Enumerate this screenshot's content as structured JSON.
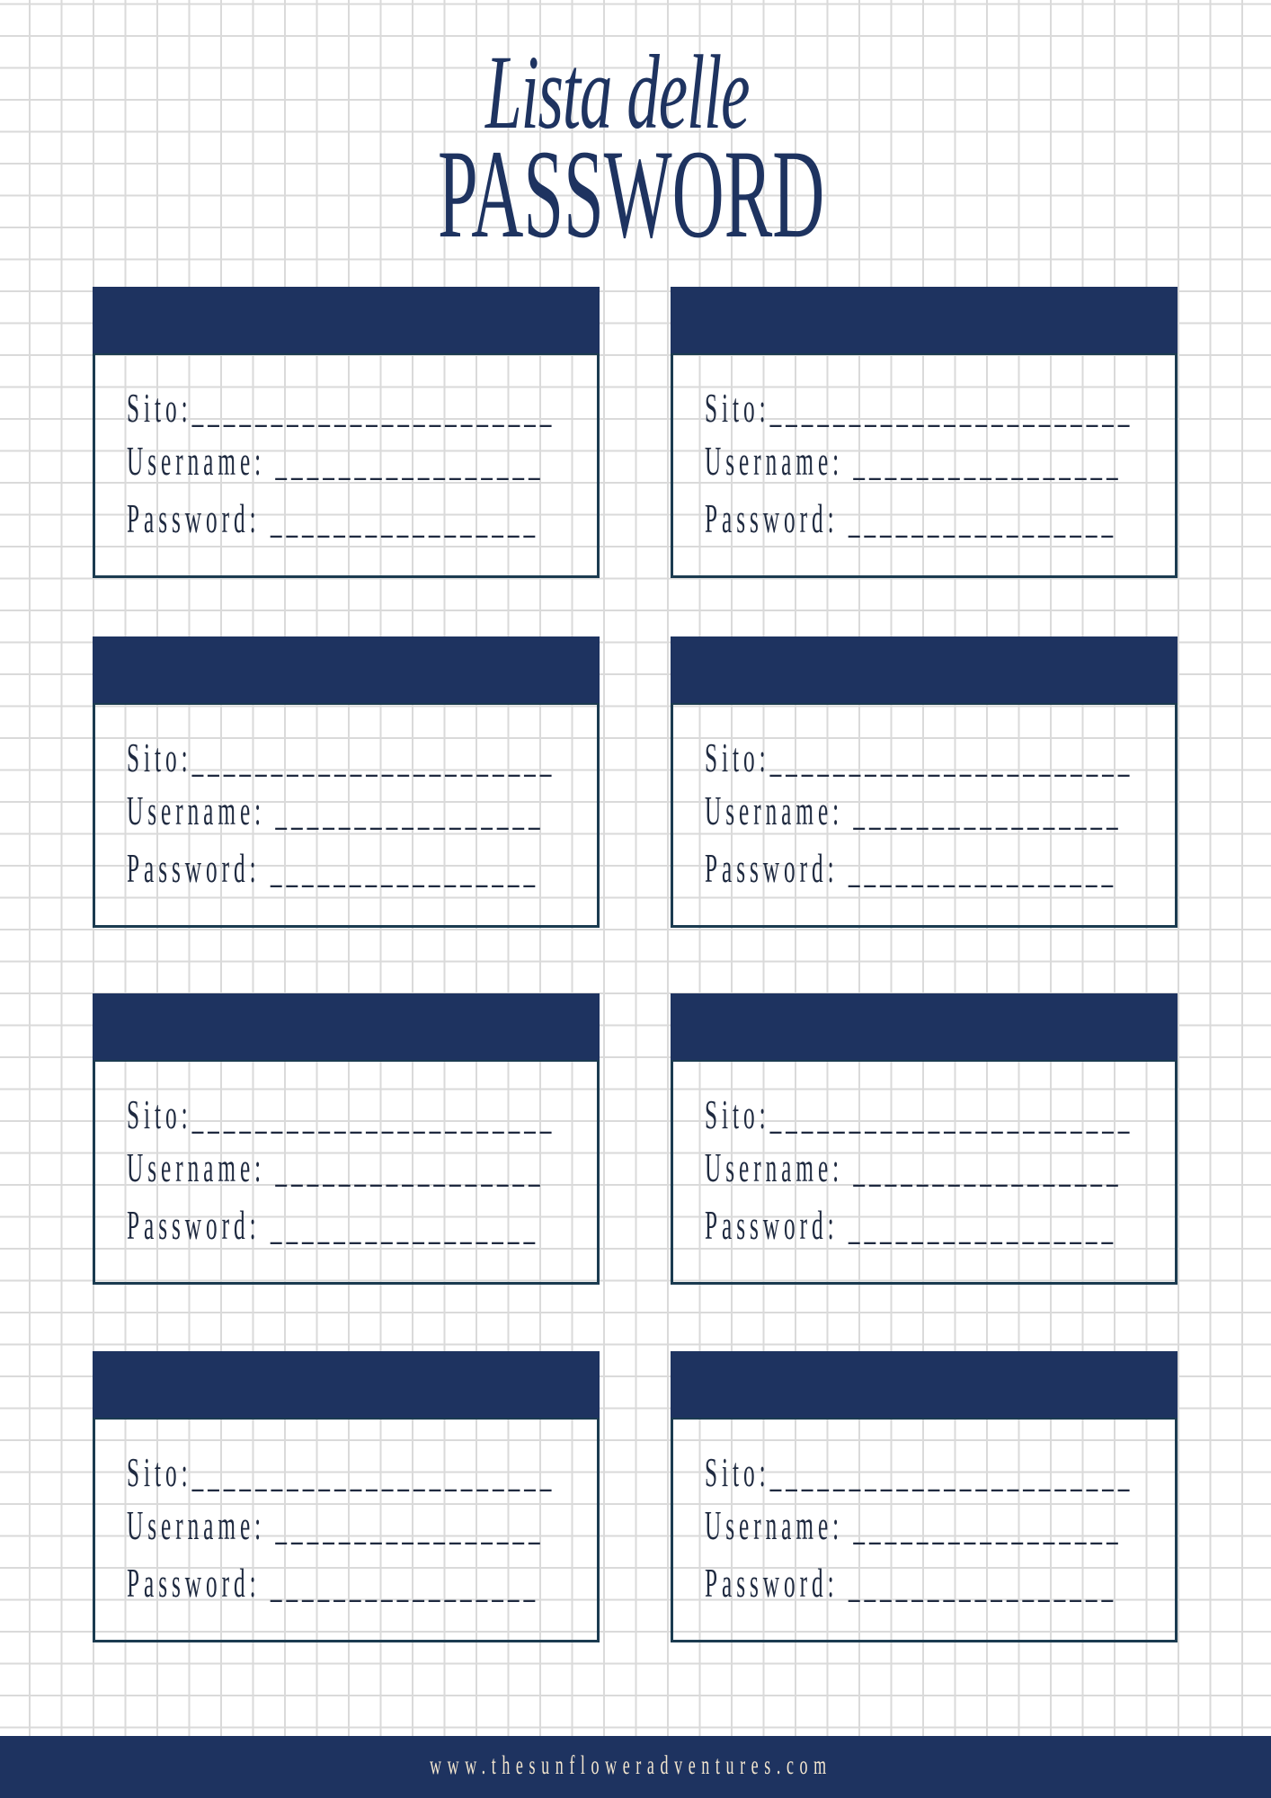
{
  "header": {
    "script_title": "Lista delle",
    "title": "PASSWORD"
  },
  "colors": {
    "navy": "#1e3360",
    "border": "#1b3b50",
    "grid": "#dadada",
    "footer_text": "#f3e6cf"
  },
  "cards": [
    {
      "site_label": "Sito:",
      "site_blank": "_______________________",
      "username_label": "Username:",
      "username_blank": "_________________",
      "password_label": "Password:",
      "password_blank": "_________________"
    },
    {
      "site_label": "Sito:",
      "site_blank": "_______________________",
      "username_label": "Username:",
      "username_blank": "_________________",
      "password_label": "Password:",
      "password_blank": "_________________"
    },
    {
      "site_label": "Sito:",
      "site_blank": "_______________________",
      "username_label": "Username:",
      "username_blank": "_________________",
      "password_label": "Password:",
      "password_blank": "_________________"
    },
    {
      "site_label": "Sito:",
      "site_blank": "_______________________",
      "username_label": "Username:",
      "username_blank": "_________________",
      "password_label": "Password:",
      "password_blank": "_________________"
    },
    {
      "site_label": "Sito:",
      "site_blank": "_______________________",
      "username_label": "Username:",
      "username_blank": "_________________",
      "password_label": "Password:",
      "password_blank": "_________________"
    },
    {
      "site_label": "Sito:",
      "site_blank": "_______________________",
      "username_label": "Username:",
      "username_blank": "_________________",
      "password_label": "Password:",
      "password_blank": "_________________"
    },
    {
      "site_label": "Sito:",
      "site_blank": "_______________________",
      "username_label": "Username:",
      "username_blank": "_________________",
      "password_label": "Password:",
      "password_blank": "_________________"
    },
    {
      "site_label": "Sito:",
      "site_blank": "_______________________",
      "username_label": "Username:",
      "username_blank": "_________________",
      "password_label": "Password:",
      "password_blank": "_________________"
    }
  ],
  "footer": {
    "website": "www.thesunfloweradventures.com"
  }
}
